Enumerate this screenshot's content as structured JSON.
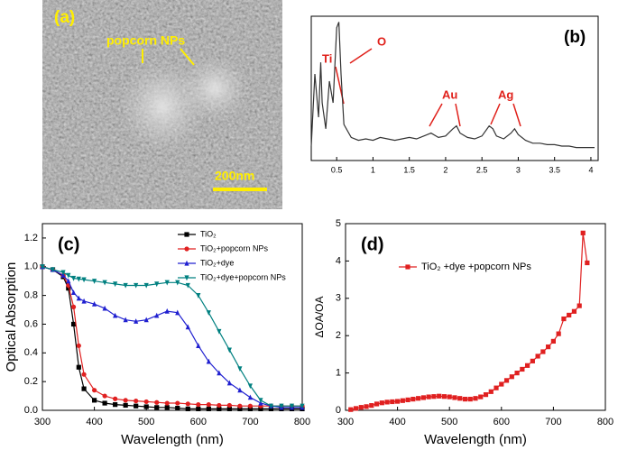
{
  "image_panel": {
    "label": "(a)",
    "annotation": "popcorn NPs",
    "scale_bar": "200nm"
  },
  "chart_data": [
    {
      "type": "line",
      "panel_label": "(b)",
      "annotations": [
        "Ti",
        "O",
        "Au",
        "Ag"
      ],
      "x": [
        0.15,
        0.2,
        0.25,
        0.28,
        0.3,
        0.35,
        0.4,
        0.45,
        0.5,
        0.53,
        0.56,
        0.6,
        0.7,
        0.8,
        0.9,
        1.0,
        1.1,
        1.2,
        1.3,
        1.4,
        1.5,
        1.6,
        1.7,
        1.8,
        1.9,
        2.0,
        2.1,
        2.15,
        2.2,
        2.3,
        2.4,
        2.5,
        2.6,
        2.65,
        2.7,
        2.8,
        2.9,
        2.95,
        3.0,
        3.1,
        3.2,
        3.3,
        3.4,
        3.5,
        3.6,
        3.7,
        3.8,
        3.9,
        4.0,
        4.05
      ],
      "series": [
        {
          "color": "#333333",
          "values": [
            10,
            60,
            30,
            68,
            40,
            22,
            55,
            40,
            92,
            96,
            60,
            25,
            16,
            14,
            15,
            14,
            16,
            15,
            14,
            15,
            16,
            15,
            17,
            19,
            16,
            17,
            22,
            24,
            19,
            16,
            15,
            17,
            24,
            22,
            17,
            15,
            19,
            22,
            18,
            14,
            12,
            12,
            11,
            11,
            10,
            10,
            9,
            9,
            9,
            9
          ]
        }
      ],
      "xlim": [
        0.15,
        4.1
      ],
      "ylim": [
        0,
        100
      ],
      "xticks": [
        0.5,
        1,
        1.5,
        2,
        2.5,
        3,
        3.5,
        4
      ]
    },
    {
      "type": "line",
      "panel_label": "(c)",
      "x_label": "Wavelength (nm)",
      "y_label": "Optical Absorption",
      "legend": "upper right",
      "x": [
        300,
        320,
        340,
        350,
        360,
        370,
        380,
        400,
        420,
        440,
        460,
        480,
        500,
        520,
        540,
        560,
        580,
        600,
        620,
        640,
        660,
        680,
        700,
        720,
        740,
        760,
        780,
        800
      ],
      "series": [
        {
          "name": "TiO₂",
          "color": "#000000",
          "marker": "square",
          "values": [
            1.0,
            0.98,
            0.93,
            0.85,
            0.6,
            0.3,
            0.15,
            0.07,
            0.05,
            0.04,
            0.035,
            0.03,
            0.025,
            0.02,
            0.02,
            0.015,
            0.01,
            0.01,
            0.01,
            0.01,
            0.01,
            0.01,
            0.01,
            0.01,
            0.01,
            0.01,
            0.01,
            0.01
          ]
        },
        {
          "name": "TiO₂+popcorn NPs",
          "color": "#e02020",
          "marker": "circle",
          "values": [
            1.0,
            0.98,
            0.94,
            0.87,
            0.72,
            0.45,
            0.25,
            0.14,
            0.1,
            0.08,
            0.07,
            0.065,
            0.06,
            0.055,
            0.05,
            0.05,
            0.045,
            0.04,
            0.04,
            0.035,
            0.035,
            0.03,
            0.03,
            0.03,
            0.03,
            0.03,
            0.03,
            0.03
          ]
        },
        {
          "name": "TiO₂+dye",
          "color": "#2020d0",
          "marker": "triangle-up",
          "values": [
            1.0,
            0.98,
            0.94,
            0.9,
            0.82,
            0.78,
            0.76,
            0.74,
            0.71,
            0.66,
            0.63,
            0.62,
            0.63,
            0.66,
            0.69,
            0.68,
            0.58,
            0.45,
            0.34,
            0.26,
            0.19,
            0.14,
            0.09,
            0.05,
            0.03,
            0.02,
            0.02,
            0.02
          ]
        },
        {
          "name": "TiO₂+dye+popcorn NPs",
          "color": "#008080",
          "marker": "triangle-down",
          "values": [
            1.0,
            0.98,
            0.96,
            0.94,
            0.92,
            0.915,
            0.91,
            0.9,
            0.89,
            0.88,
            0.87,
            0.87,
            0.87,
            0.88,
            0.89,
            0.89,
            0.87,
            0.8,
            0.68,
            0.55,
            0.42,
            0.29,
            0.17,
            0.07,
            0.03,
            0.03,
            0.03,
            0.03
          ]
        }
      ],
      "xlim": [
        300,
        800
      ],
      "ylim": [
        0,
        1.3
      ],
      "xticks": [
        300,
        400,
        500,
        600,
        700,
        800
      ],
      "yticks": [
        {
          "value": 0,
          "label": "0.0"
        },
        0.2,
        0.4,
        0.6,
        0.8,
        {
          "value": 1,
          "label": "1.0"
        },
        1.2
      ]
    },
    {
      "type": "line",
      "panel_label": "(d)",
      "x_label": "Wavelength (nm)",
      "y_label": "ΔOA/OA",
      "legend": "upper center",
      "x": [
        310,
        320,
        330,
        340,
        350,
        360,
        370,
        380,
        390,
        400,
        410,
        420,
        430,
        440,
        450,
        460,
        470,
        480,
        490,
        500,
        510,
        520,
        530,
        540,
        550,
        560,
        570,
        580,
        590,
        600,
        610,
        620,
        630,
        640,
        650,
        660,
        670,
        680,
        690,
        700,
        710,
        720,
        730,
        740,
        750,
        757,
        765
      ],
      "series": [
        {
          "name": "TiO₂ +dye +popcorn NPs",
          "color": "#e02020",
          "marker": "square",
          "values": [
            0.02,
            0.05,
            0.08,
            0.1,
            0.13,
            0.17,
            0.2,
            0.22,
            0.23,
            0.24,
            0.26,
            0.28,
            0.3,
            0.32,
            0.34,
            0.36,
            0.37,
            0.38,
            0.37,
            0.36,
            0.34,
            0.32,
            0.3,
            0.3,
            0.32,
            0.36,
            0.42,
            0.5,
            0.6,
            0.7,
            0.8,
            0.9,
            1.0,
            1.1,
            1.2,
            1.32,
            1.45,
            1.57,
            1.7,
            1.85,
            2.05,
            2.45,
            2.55,
            2.65,
            2.8,
            4.75,
            3.95
          ]
        }
      ],
      "xlim": [
        300,
        800
      ],
      "ylim": [
        0,
        5
      ],
      "xticks": [
        300,
        400,
        500,
        600,
        700,
        800
      ],
      "yticks": [
        0,
        1,
        2,
        3,
        4,
        5
      ]
    }
  ]
}
